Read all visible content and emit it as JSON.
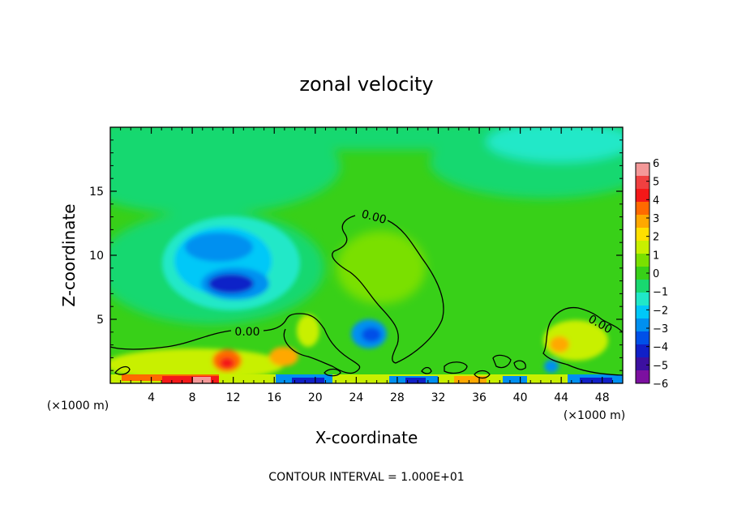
{
  "chart_data": {
    "type": "heatmap",
    "title": "zonal velocity",
    "xlabel": "X-coordinate",
    "ylabel": "Z-coordinate",
    "x_unit_left": "(×1000 m)",
    "x_unit_right": "(×1000 m)",
    "xlim": [
      0,
      50
    ],
    "ylim": [
      0,
      20
    ],
    "xticks": [
      4,
      8,
      12,
      16,
      20,
      24,
      28,
      32,
      36,
      40,
      44,
      48
    ],
    "yticks": [
      5,
      10,
      15
    ],
    "grid": false,
    "colorbar": {
      "range": [
        -6,
        6
      ],
      "ticks": [
        6,
        5,
        4,
        3,
        2,
        1,
        0,
        -1,
        -2,
        -3,
        -4,
        -5,
        -6
      ],
      "tick_labels": [
        "6",
        "5",
        "4",
        "3",
        "2",
        "1",
        "0",
        "−1",
        "−2",
        "−3",
        "−4",
        "−5",
        "−6"
      ],
      "colors": [
        "#f49898",
        "#f04040",
        "#f41818",
        "#ff6a00",
        "#ffa800",
        "#ffe000",
        "#c8f000",
        "#7ae000",
        "#38d018",
        "#18d870",
        "#20e8c8",
        "#00c8f8",
        "#0090f0",
        "#0050e8",
        "#1020c8",
        "#3c10a0",
        "#7c10a0"
      ],
      "placement": "right"
    },
    "contour_level": "0.00",
    "contour_labels": [
      "0.00",
      "0.00",
      "0.00"
    ],
    "note": "CONTOUR INTERVAL = 1.000E+01"
  }
}
